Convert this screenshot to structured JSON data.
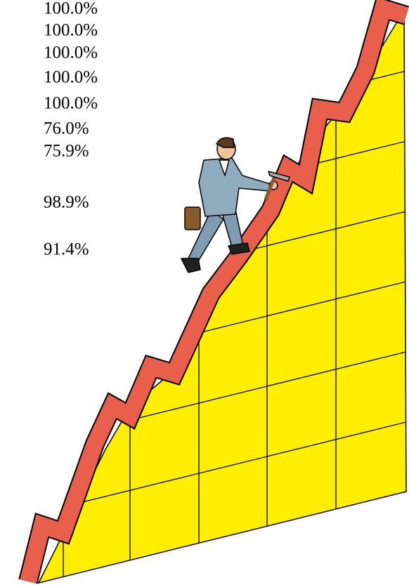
{
  "labels": [
    "100.0%",
    "100.0%",
    "100.0%",
    "100.0%",
    "100.0%",
    "76.0%",
    "75.9%",
    "98.9%",
    "91.4%"
  ]
}
